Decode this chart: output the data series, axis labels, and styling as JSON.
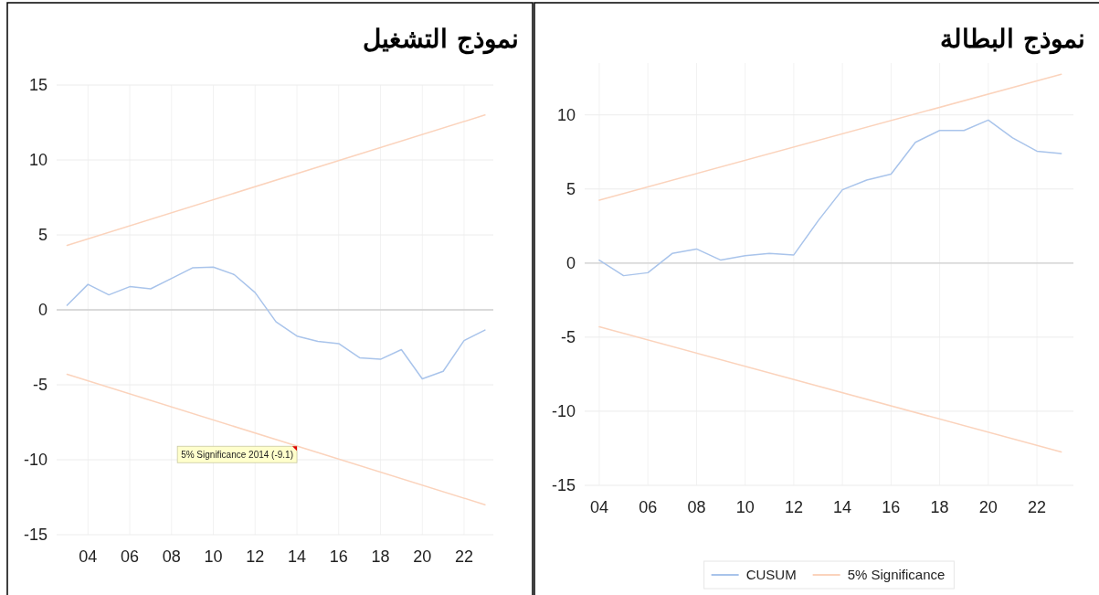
{
  "chart_data": [
    {
      "type": "line",
      "title": "نموذج التشغيل",
      "x": [
        2003,
        2004,
        2005,
        2006,
        2007,
        2008,
        2009,
        2010,
        2011,
        2012,
        2013,
        2014,
        2015,
        2016,
        2017,
        2018,
        2019,
        2020,
        2021,
        2022,
        2023
      ],
      "xlim": [
        2002.5,
        2023.4
      ],
      "xticks": [
        {
          "value": 2004,
          "label": "04"
        },
        {
          "value": 2006,
          "label": "06"
        },
        {
          "value": 2008,
          "label": "08"
        },
        {
          "value": 2010,
          "label": "10"
        },
        {
          "value": 2012,
          "label": "12"
        },
        {
          "value": 2014,
          "label": "14"
        },
        {
          "value": 2016,
          "label": "16"
        },
        {
          "value": 2018,
          "label": "18"
        },
        {
          "value": 2020,
          "label": "20"
        },
        {
          "value": 2022,
          "label": "22"
        }
      ],
      "ylim": [
        -15,
        15
      ],
      "yticks": [
        -15,
        -10,
        -5,
        0,
        5,
        10,
        15
      ],
      "grid": true,
      "series": [
        {
          "color": "#a9c4eb",
          "values": [
            0.3,
            1.7,
            1.0,
            1.55,
            1.4,
            2.1,
            2.8,
            2.85,
            2.35,
            1.15,
            -0.8,
            -1.75,
            -2.1,
            -2.25,
            -3.2,
            -3.3,
            -2.65,
            -4.6,
            -4.1,
            -2.05,
            -1.35
          ]
        },
        {
          "color": "#fbd3bc",
          "x": [
            2003,
            2023
          ],
          "values": [
            4.3,
            13.0
          ]
        },
        {
          "color": "#fbd3bc",
          "x": [
            2003,
            2023
          ],
          "values": [
            -4.3,
            -13.0
          ]
        }
      ],
      "annotations": [
        {
          "text": "5% Significance 2014 (-9.1)",
          "x": 2014,
          "y": -9.1
        }
      ]
    },
    {
      "type": "line",
      "title": "نموذج البطالة",
      "x": [
        2004,
        2005,
        2006,
        2007,
        2008,
        2009,
        2010,
        2011,
        2012,
        2013,
        2014,
        2015,
        2016,
        2017,
        2018,
        2019,
        2020,
        2021,
        2022,
        2023
      ],
      "xlim": [
        2003.4,
        2023.5
      ],
      "xticks": [
        {
          "value": 2004,
          "label": "04"
        },
        {
          "value": 2006,
          "label": "06"
        },
        {
          "value": 2008,
          "label": "08"
        },
        {
          "value": 2010,
          "label": "10"
        },
        {
          "value": 2012,
          "label": "12"
        },
        {
          "value": 2014,
          "label": "14"
        },
        {
          "value": 2016,
          "label": "16"
        },
        {
          "value": 2018,
          "label": "18"
        },
        {
          "value": 2020,
          "label": "20"
        },
        {
          "value": 2022,
          "label": "22"
        }
      ],
      "ylim": [
        -15,
        13.5
      ],
      "yticks": [
        -15,
        -10,
        -5,
        0,
        5,
        10
      ],
      "grid": true,
      "legend": "bottom",
      "series": [
        {
          "name": "CUSUM",
          "color": "#a9c4eb",
          "values": [
            0.2,
            -0.85,
            -0.65,
            0.65,
            0.95,
            0.2,
            0.5,
            0.65,
            0.55,
            2.85,
            4.95,
            5.6,
            6.0,
            8.15,
            8.95,
            8.95,
            9.65,
            8.45,
            7.55,
            7.4
          ]
        },
        {
          "name": "5% Significance",
          "color": "#fbd3bc",
          "x": [
            2004,
            2023
          ],
          "values": [
            4.25,
            12.75
          ]
        },
        {
          "color": "#fbd3bc",
          "x": [
            2004,
            2023
          ],
          "values": [
            -4.3,
            -12.75
          ]
        }
      ]
    }
  ]
}
